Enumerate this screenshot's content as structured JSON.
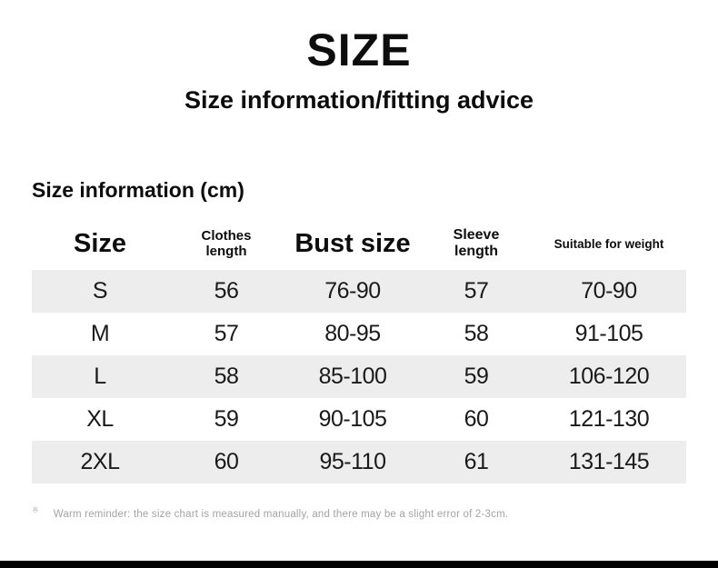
{
  "page": {
    "title": "SIZE",
    "subtitle": "Size information/fitting advice"
  },
  "chart_data": {
    "type": "table",
    "title": "Size information (cm)",
    "columns": [
      "Size",
      "Clothes length",
      "Bust size",
      "Sleeve length",
      "Suitable for weight"
    ],
    "header_lines": [
      [
        "Size"
      ],
      [
        "Clothes",
        "length"
      ],
      [
        "Bust size"
      ],
      [
        "Sleeve",
        "length"
      ],
      [
        "Suitable for weight"
      ]
    ],
    "rows": [
      [
        "S",
        "56",
        "76-90",
        "57",
        "70-90"
      ],
      [
        "M",
        "57",
        "80-95",
        "58",
        "91-105"
      ],
      [
        "L",
        "58",
        "85-100",
        "59",
        "106-120"
      ],
      [
        "XL",
        "59",
        "90-105",
        "60",
        "121-130"
      ],
      [
        "2XL",
        "60",
        "95-110",
        "61",
        "131-145"
      ]
    ]
  },
  "footer": {
    "marker": "※",
    "note": "Warm reminder: the size chart is measured manually, and there may be a slight error of 2-3cm."
  },
  "colors": {
    "background": "#ffffff",
    "row_stripe": "#ededed",
    "text": "#0d0d0d",
    "note_text": "#a3a3a3",
    "bottom_bar": "#000000"
  }
}
